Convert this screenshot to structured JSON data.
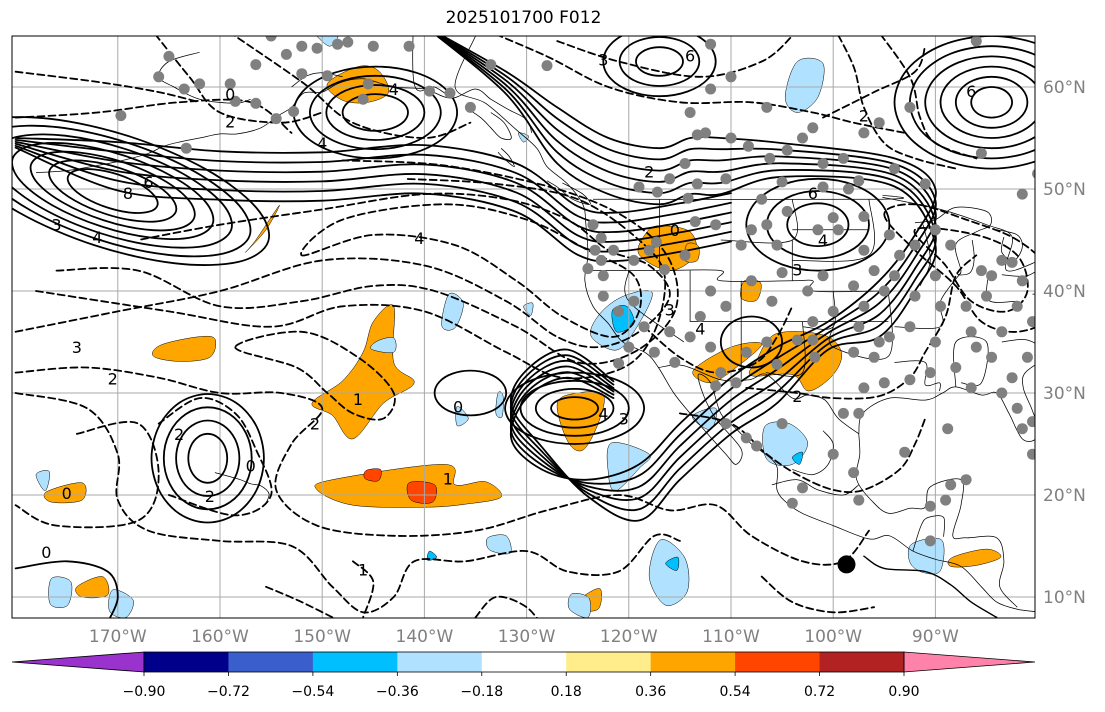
{
  "title": "2025101700 F012",
  "lon_labels": [
    "170°W",
    "160°W",
    "150°W",
    "140°W",
    "130°W",
    "120°W",
    "110°W",
    "100°W",
    "90°W"
  ],
  "lat_labels": [
    "60°N",
    "50°N",
    "40°N",
    "30°N",
    "20°N",
    "10°N"
  ],
  "colorbar": {
    "labels": [
      "−0.90",
      "−0.72",
      "−0.54",
      "−0.36",
      "−0.18",
      "0.18",
      "0.36",
      "0.54",
      "0.72",
      "0.90"
    ],
    "colors": [
      "#9a32cd",
      "#00008b",
      "#3a5fcd",
      "#00bfff",
      "#b0e2ff",
      "#ffffff",
      "#ffec8b",
      "#ffa500",
      "#ff4500",
      "#b22222",
      "#ff82ab"
    ]
  },
  "contour_labels": [
    {
      "text": "6",
      "lon": -167,
      "lat": 50.7
    },
    {
      "text": "8",
      "lon": -169,
      "lat": 49.6
    },
    {
      "text": "3",
      "lon": -176,
      "lat": 46.5
    },
    {
      "text": "4",
      "lon": -172,
      "lat": 45.3
    },
    {
      "text": "2",
      "lon": -159,
      "lat": 56.6
    },
    {
      "text": "0",
      "lon": -159,
      "lat": 59.3
    },
    {
      "text": "4",
      "lon": -143,
      "lat": 59.8
    },
    {
      "text": "4",
      "lon": -150,
      "lat": 54.5
    },
    {
      "text": "4",
      "lon": -140.5,
      "lat": 45.2
    },
    {
      "text": "6",
      "lon": -114,
      "lat": 63.1
    },
    {
      "text": "3",
      "lon": -122.5,
      "lat": 62.7
    },
    {
      "text": "2",
      "lon": -118,
      "lat": 51.7
    },
    {
      "text": "6",
      "lon": -102,
      "lat": 49.6
    },
    {
      "text": "4",
      "lon": -101,
      "lat": 45.0
    },
    {
      "text": "3",
      "lon": -103.5,
      "lat": 42.1
    },
    {
      "text": "6",
      "lon": -86.5,
      "lat": 59.6
    },
    {
      "text": "3",
      "lon": -174,
      "lat": 34.5
    },
    {
      "text": "2",
      "lon": -170.5,
      "lat": 31.4
    },
    {
      "text": "2",
      "lon": -164,
      "lat": 26.0
    },
    {
      "text": "2",
      "lon": -161,
      "lat": 19.9
    },
    {
      "text": "0",
      "lon": -157,
      "lat": 22.9
    },
    {
      "text": "0",
      "lon": -175,
      "lat": 20.2
    },
    {
      "text": "0",
      "lon": -177,
      "lat": 14.4
    },
    {
      "text": "1",
      "lon": -137.7,
      "lat": 21.6
    },
    {
      "text": "4",
      "lon": -122.5,
      "lat": 28.0
    },
    {
      "text": "3",
      "lon": -120.5,
      "lat": 27.5
    },
    {
      "text": "0",
      "lon": -136.7,
      "lat": 28.7
    },
    {
      "text": "2",
      "lon": -150.7,
      "lat": 27.0
    },
    {
      "text": "1",
      "lon": -146.5,
      "lat": 29.4
    },
    {
      "text": "3",
      "lon": -116,
      "lat": 38.2
    },
    {
      "text": "4",
      "lon": -113,
      "lat": 36.3
    },
    {
      "text": "2",
      "lon": -103.5,
      "lat": 29.7
    },
    {
      "text": "1",
      "lon": -146,
      "lat": 12.7
    },
    {
      "text": "0",
      "lon": -115.5,
      "lat": 46.0
    },
    {
      "text": "2",
      "lon": -97,
      "lat": 57.2
    }
  ]
}
